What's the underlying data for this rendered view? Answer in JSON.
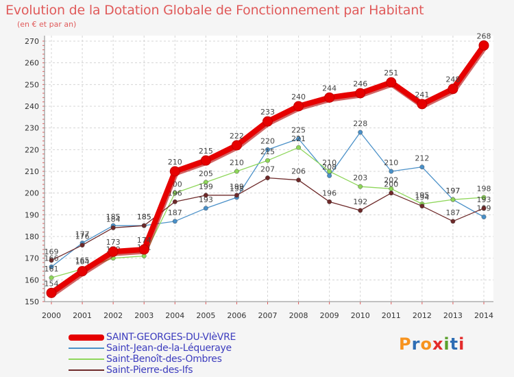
{
  "title": "Evolution de la Dotation Globale de Fonctionnement par Habitant",
  "subtitle": "(en € et par an)",
  "brand": {
    "text": "Proxiti",
    "letter_colors": [
      "#f7931e",
      "#2e6db4",
      "#f7931e",
      "#e32b2b",
      "#5aa02c",
      "#2e6db4",
      "#e32b2b"
    ]
  },
  "chart_data": {
    "type": "line",
    "title": "Evolution de la Dotation Globale de Fonctionnement par Habitant",
    "subtitle": "(en € et par an)",
    "x": [
      "2000",
      "2001",
      "2002",
      "2003",
      "2004",
      "2005",
      "2006",
      "2007",
      "2008",
      "2009",
      "2010",
      "2011",
      "2012",
      "2013",
      "2014"
    ],
    "ylim": [
      150,
      270
    ],
    "yticks": [
      150,
      160,
      170,
      180,
      190,
      200,
      210,
      220,
      230,
      240,
      250,
      260,
      270
    ],
    "grid": true,
    "legend_position": "bottom-left",
    "series": [
      {
        "name": "Saint-Jean-de-la-Léqueraye",
        "color": "#4a90c8",
        "values": [
          166,
          177,
          185,
          185,
          187,
          193,
          198,
          220,
          225,
          208,
          228,
          210,
          212,
          197,
          189
        ]
      },
      {
        "name": "Saint-Benoît-des-Ombres",
        "color": "#8ed65a",
        "values": [
          161,
          165,
          170,
          171,
          200,
          205,
          210,
          215,
          221,
          210,
          203,
          202,
          195,
          197,
          198
        ]
      },
      {
        "name": "Saint-Pierre-des-Ifs",
        "color": "#6e2a2a",
        "values": [
          169,
          176,
          184,
          185,
          196,
          199,
          199,
          207,
          206,
          196,
          192,
          200,
          194,
          187,
          193
        ]
      },
      {
        "name": "SAINT-GEORGES-DU-VIèVRE",
        "color": "#e60000",
        "values": [
          154,
          164,
          173,
          174,
          210,
          215,
          222,
          233,
          240,
          244,
          246,
          251,
          241,
          248,
          268
        ],
        "emphasis": true
      }
    ],
    "legend_order": [
      "SAINT-GEORGES-DU-VIèVRE",
      "Saint-Jean-de-la-Léqueraye",
      "Saint-Benoît-des-Ombres",
      "Saint-Pierre-des-Ifs"
    ]
  }
}
